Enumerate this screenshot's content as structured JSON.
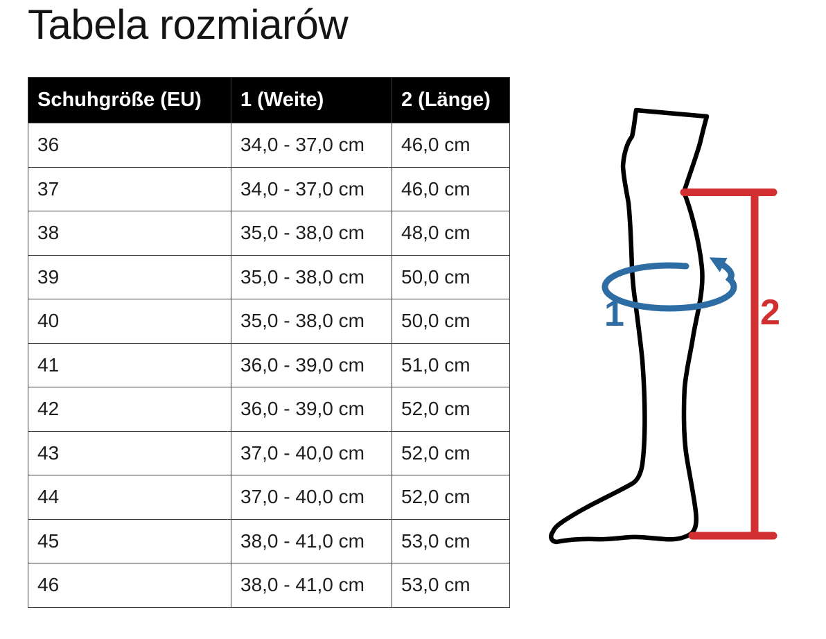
{
  "page": {
    "title": "Tabela rozmiarów"
  },
  "table": {
    "columns": [
      "Schuhgröße (EU)",
      "1 (Weite)",
      "2 (Länge)"
    ],
    "rows": [
      [
        "36",
        "34,0 - 37,0 cm",
        "46,0 cm"
      ],
      [
        "37",
        "34,0 - 37,0 cm",
        "46,0 cm"
      ],
      [
        "38",
        "35,0 - 38,0 cm",
        "48,0 cm"
      ],
      [
        "39",
        "35,0 - 38,0 cm",
        "50,0 cm"
      ],
      [
        "40",
        "35,0 - 38,0 cm",
        "50,0 cm"
      ],
      [
        "41",
        "36,0 - 39,0 cm",
        "51,0 cm"
      ],
      [
        "42",
        "36,0 - 39,0 cm",
        "52,0 cm"
      ],
      [
        "43",
        "37,0 - 40,0 cm",
        "52,0 cm"
      ],
      [
        "44",
        "37,0 - 40,0 cm",
        "52,0 cm"
      ],
      [
        "45",
        "38,0 - 41,0 cm",
        "53,0 cm"
      ],
      [
        "46",
        "38,0 - 41,0 cm",
        "53,0 cm"
      ]
    ],
    "header_bg": "#000000",
    "header_text_color": "#ffffff"
  },
  "diagram": {
    "width_marker_label": "1",
    "length_marker_label": "2",
    "width_color": "#2e6da4",
    "length_color": "#d23030",
    "leg_outline_color": "#000000"
  }
}
